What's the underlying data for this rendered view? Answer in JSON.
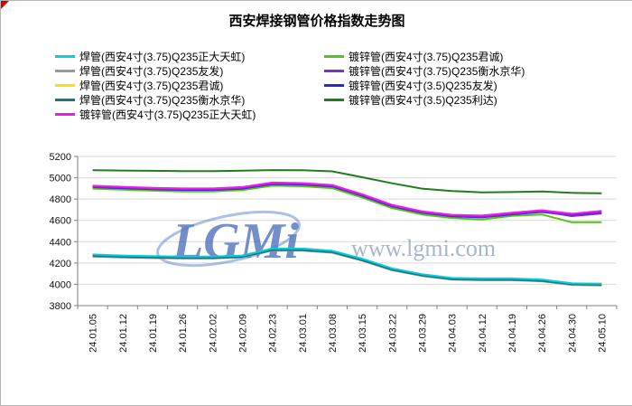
{
  "title": "西安焊接钢管价格指数走势图",
  "watermark": {
    "logo_text": "LGMi",
    "site_text": "www.lgmi.com",
    "logo_color": "#3e63b5"
  },
  "chart_data": {
    "type": "line",
    "title": "西安焊接钢管价格指数走势图",
    "categories": [
      "24.01.05",
      "24.01.12",
      "24.01.19",
      "24.01.26",
      "24.02.02",
      "24.02.09",
      "24.02.23",
      "24.03.01",
      "24.03.08",
      "24.03.15",
      "24.03.22",
      "24.03.29",
      "24.04.03",
      "24.04.12",
      "24.04.19",
      "24.04.26",
      "24.04.30",
      "24.05.10"
    ],
    "ylim": [
      3800,
      5200
    ],
    "ytick_step": 200,
    "yticks": [
      3800,
      4000,
      4200,
      4400,
      4600,
      4800,
      5000,
      5200
    ],
    "grid": "horizontal-only",
    "legend_position": "top-left, two columns",
    "series": [
      {
        "name": "焊管(西安4寸(3.75)Q235正大天虹)",
        "color": "#00cfe0",
        "values": [
          4280,
          4270,
          4265,
          4260,
          4260,
          4270,
          4335,
          4335,
          4315,
          4240,
          4150,
          4095,
          4060,
          4055,
          4055,
          4045,
          4010,
          4005
        ]
      },
      {
        "name": "焊管(西安4寸(3.75)Q235友发)",
        "color": "#9a9a9a",
        "values": [
          4260,
          4252,
          4246,
          4242,
          4242,
          4252,
          4316,
          4316,
          4296,
          4222,
          4132,
          4078,
          4044,
          4038,
          4038,
          4028,
          3994,
          3988
        ]
      },
      {
        "name": "焊管(西安4寸(3.75)Q235君诚)",
        "color": "#f2e30c",
        "values": [
          4272,
          4263,
          4257,
          4253,
          4253,
          4263,
          4327,
          4327,
          4307,
          4232,
          4142,
          4088,
          4053,
          4048,
          4048,
          4038,
          4008,
          4008
        ]
      },
      {
        "name": "焊管(西安4寸(3.75)Q235衡水京华)",
        "color": "#17767a",
        "values": [
          4266,
          4258,
          4252,
          4248,
          4248,
          4258,
          4322,
          4322,
          4302,
          4227,
          4137,
          4083,
          4048,
          4043,
          4043,
          4033,
          4000,
          3995
        ]
      },
      {
        "name": "镀锌管(西安4寸(3.75)Q235正大天虹)",
        "color": "#f516f5",
        "values": [
          4925,
          4915,
          4905,
          4900,
          4900,
          4912,
          4955,
          4950,
          4932,
          4845,
          4745,
          4685,
          4652,
          4645,
          4672,
          4695,
          4662,
          4688
        ]
      },
      {
        "name": "镀锌管(西安4寸(3.75)Q235君诚)",
        "color": "#53c319",
        "values": [
          4898,
          4888,
          4878,
          4872,
          4872,
          4884,
          4925,
          4920,
          4902,
          4815,
          4715,
          4655,
          4622,
          4608,
          4642,
          4655,
          4582,
          4582
        ]
      },
      {
        "name": "镀锌管(西安4寸(3.75)Q235衡水京华)",
        "color": "#7a30c4",
        "values": [
          4918,
          4908,
          4898,
          4892,
          4892,
          4904,
          4947,
          4942,
          4924,
          4837,
          4737,
          4677,
          4644,
          4634,
          4662,
          4684,
          4640,
          4665
        ]
      },
      {
        "name": "镀锌管(西安4寸(3.5)Q235友发)",
        "color": "#2a2ac8",
        "values": [
          4912,
          4902,
          4892,
          4886,
          4886,
          4898,
          4941,
          4936,
          4918,
          4831,
          4731,
          4671,
          4638,
          4628,
          4656,
          4678,
          4648,
          4672
        ]
      },
      {
        "name": "镀锌管(西安4寸(3.5)Q235利达)",
        "color": "#1e7e1e",
        "values": [
          5070,
          5068,
          5065,
          5062,
          5062,
          5066,
          5072,
          5070,
          5060,
          5005,
          4948,
          4898,
          4876,
          4862,
          4866,
          4872,
          4858,
          4855
        ]
      }
    ]
  }
}
